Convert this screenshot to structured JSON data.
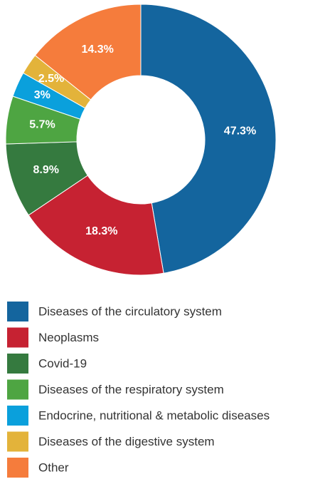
{
  "chart_data": {
    "type": "donut",
    "categories": [
      "Diseases of the circulatory system",
      "Neoplasms",
      "Covid-19",
      "Diseases of the respiratory system",
      "Endocrine, nutritional & metabolic diseases",
      "Diseases of the digestive system",
      "Other"
    ],
    "values": [
      47.3,
      18.3,
      8.9,
      5.7,
      3,
      2.5,
      14.3
    ],
    "value_labels": [
      "47.3%",
      "18.3%",
      "8.9%",
      "5.7%",
      "3%",
      "2.5%",
      "14.3%"
    ],
    "colors": [
      "#14659e",
      "#c62232",
      "#357a3f",
      "#4ea542",
      "#0aa0dc",
      "#e3b33a",
      "#f57c3c"
    ],
    "legend": "bottom"
  }
}
